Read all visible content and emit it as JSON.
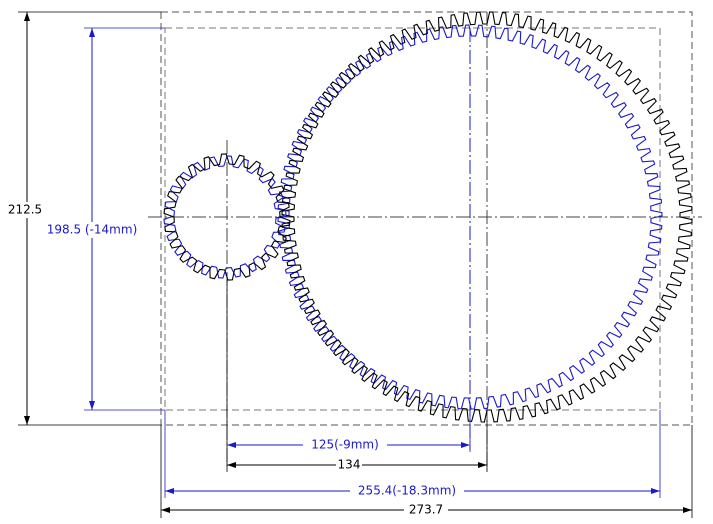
{
  "dimensions": {
    "overall_height": "212.5",
    "reduced_height": "198.5 (-14mm)",
    "reduced_center_distance": "125(-9mm)",
    "center_distance": "134",
    "reduced_width": "255.4(-18.3mm)",
    "overall_width": "273.7"
  }
}
